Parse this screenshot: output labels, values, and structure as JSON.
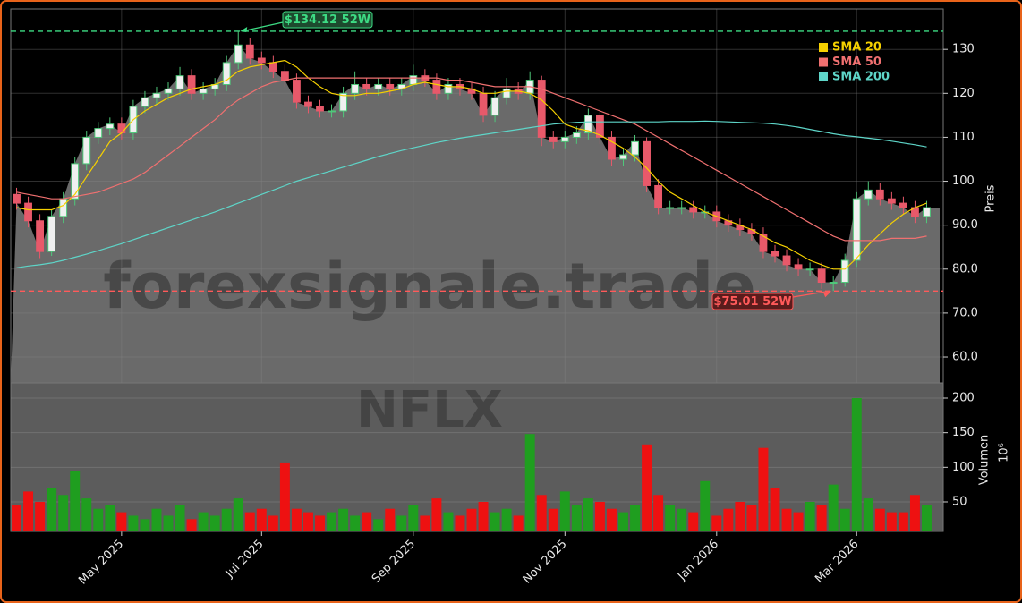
{
  "chart_data": [
    {
      "type": "candlestick",
      "categories": [
        null,
        null,
        null,
        null,
        null,
        null,
        null,
        null,
        null,
        "May 2025",
        null,
        null,
        null,
        null,
        null,
        null,
        null,
        null,
        null,
        null,
        null,
        "Jul 2025",
        null,
        null,
        null,
        null,
        null,
        null,
        null,
        null,
        null,
        null,
        null,
        null,
        "Sep 2025",
        null,
        null,
        null,
        null,
        null,
        null,
        null,
        null,
        null,
        null,
        null,
        null,
        "Nov 2025",
        null,
        null,
        null,
        null,
        null,
        null,
        null,
        null,
        null,
        null,
        null,
        null,
        "Jan 2026",
        null,
        null,
        null,
        null,
        null,
        null,
        null,
        null,
        null,
        null,
        null,
        "Mar 2026",
        null,
        null,
        null,
        null,
        null,
        null
      ],
      "open": [
        97,
        95,
        91,
        84,
        92,
        96,
        104,
        110,
        112,
        113,
        111,
        117,
        119,
        120,
        121,
        124,
        120,
        121,
        122,
        127,
        131,
        128,
        127,
        125,
        123,
        118,
        117,
        116,
        116,
        120,
        122,
        121,
        122,
        121,
        122,
        124,
        123,
        120,
        122,
        121,
        120,
        115,
        119,
        121,
        120,
        123,
        110,
        109,
        110,
        111,
        115,
        110,
        105,
        106,
        109,
        99,
        94,
        94,
        94,
        93,
        93,
        91,
        90,
        89,
        88,
        84,
        83,
        81,
        80,
        80,
        77,
        77,
        82,
        96,
        98,
        96,
        95,
        94,
        92
      ],
      "high": [
        98.5,
        96.5,
        92.5,
        93.5,
        97.5,
        105.5,
        111.5,
        113.5,
        114.5,
        114.5,
        118.5,
        120.5,
        121.5,
        122.5,
        126,
        125.5,
        122.5,
        123.5,
        128.5,
        134.12,
        132.5,
        129.5,
        128.5,
        126.5,
        124.5,
        119.5,
        118.5,
        117.5,
        121.5,
        125,
        123.5,
        123.5,
        123.5,
        123.5,
        126.5,
        125.5,
        124.5,
        123.5,
        123.5,
        122.5,
        121.5,
        120.5,
        123.5,
        122.5,
        125,
        124,
        111.5,
        111.5,
        112.5,
        116.5,
        116.5,
        111.5,
        107.5,
        110.5,
        110,
        100.5,
        95.5,
        95.5,
        95.5,
        94.5,
        94.5,
        92.5,
        91.5,
        90.5,
        89.5,
        85.5,
        84.5,
        82.5,
        81.5,
        81.5,
        78.5,
        83.5,
        97.5,
        100,
        99.5,
        97.5,
        96.5,
        95.5,
        95.5
      ],
      "low": [
        93.5,
        89.5,
        82.5,
        83,
        90.5,
        94.5,
        102.5,
        108.5,
        110.5,
        109.5,
        109.5,
        115.5,
        117.5,
        118.5,
        119.5,
        118.5,
        118.5,
        119.5,
        120.5,
        125.5,
        126.5,
        125.5,
        123.5,
        121.5,
        116.5,
        115.5,
        114.5,
        114.5,
        114.5,
        118.5,
        119.5,
        119.5,
        119.5,
        119.5,
        120.5,
        121.5,
        118.5,
        118.5,
        119.5,
        118.5,
        113.5,
        113.5,
        117.5,
        118.5,
        118.5,
        108,
        107.5,
        107.5,
        108.5,
        109.5,
        108.5,
        103.5,
        103.5,
        104.5,
        97.5,
        92.5,
        92.5,
        92.5,
        91.5,
        91.5,
        89.5,
        88.5,
        87.5,
        86.5,
        82.5,
        81.5,
        79.5,
        78.5,
        78.5,
        75.5,
        75.01,
        76,
        80.5,
        94.5,
        94.5,
        93.5,
        92.5,
        90.5,
        90.5
      ],
      "close": [
        95,
        91,
        84,
        92,
        96,
        104,
        110,
        112,
        113,
        111,
        117,
        119,
        120,
        121,
        124,
        120,
        121,
        122,
        127,
        131,
        128,
        127,
        125,
        123,
        118,
        117,
        116,
        116,
        120,
        122,
        121,
        122,
        121,
        122,
        124,
        123,
        120,
        122,
        121,
        120,
        115,
        119,
        121,
        120,
        123,
        110,
        109,
        110,
        111,
        115,
        110,
        105,
        106,
        109,
        99,
        94,
        94,
        94,
        93,
        93,
        91,
        90,
        89,
        88,
        84,
        83,
        81,
        80,
        80,
        77,
        77,
        82,
        96,
        98,
        96,
        95,
        94,
        92,
        94
      ],
      "up_color": "#4fc87a",
      "down_color": "#e8596a",
      "series": [
        {
          "name": "SMA 20",
          "color": "#f5d000",
          "values": [
            94,
            93.5,
            93.5,
            93.5,
            94.5,
            97,
            101,
            105,
            109,
            111,
            114,
            116,
            117.5,
            119,
            120,
            121,
            121.5,
            122,
            123,
            125,
            126,
            126.5,
            127,
            127.5,
            126,
            123.5,
            121.5,
            120,
            119.5,
            119.5,
            120,
            120,
            120.5,
            121,
            122,
            122.5,
            122,
            121.5,
            121.5,
            121,
            120,
            120,
            120.5,
            120.5,
            120,
            118.5,
            116,
            113,
            112,
            111.5,
            110.5,
            109,
            107.5,
            105.5,
            103,
            100,
            97.5,
            96,
            94.5,
            93,
            92,
            91,
            90,
            89,
            87.5,
            86,
            85,
            83.5,
            82,
            81,
            80,
            80,
            82.5,
            85.5,
            88,
            90.5,
            92.5,
            94,
            95
          ]
        },
        {
          "name": "SMA 50",
          "color": "#f07070",
          "values": [
            97.5,
            97,
            96.5,
            96,
            96,
            96.5,
            97,
            97.5,
            98.5,
            99.5,
            100.5,
            102,
            104,
            106,
            108,
            110,
            112,
            114,
            116.5,
            118.5,
            120,
            121.5,
            122.5,
            123,
            123.5,
            123.5,
            123.5,
            123.5,
            123.5,
            123.5,
            123.5,
            123.5,
            123.5,
            123.5,
            123.5,
            123.5,
            123.5,
            123,
            123,
            122.5,
            122,
            121.5,
            121.5,
            121.5,
            121.5,
            121,
            120,
            119,
            118,
            117,
            116,
            115,
            114,
            113,
            111.5,
            110,
            108.5,
            107,
            105.5,
            104,
            102.5,
            101,
            99.5,
            98,
            96.5,
            95,
            93.5,
            92,
            90.5,
            89,
            87.5,
            86.5,
            86.5,
            86.5,
            86.5,
            87,
            87,
            87,
            87.5
          ]
        },
        {
          "name": "SMA 200",
          "color": "#5ed5c8",
          "values": [
            80.3,
            80.7,
            81,
            81.4,
            82,
            82.7,
            83.4,
            84.2,
            85,
            85.8,
            86.7,
            87.6,
            88.5,
            89.4,
            90.3,
            91.2,
            92.1,
            93,
            94,
            95,
            96,
            97,
            98,
            99,
            100,
            100.8,
            101.6,
            102.4,
            103.2,
            104,
            104.8,
            105.6,
            106.3,
            107,
            107.6,
            108.2,
            108.8,
            109.3,
            109.8,
            110.2,
            110.6,
            111,
            111.4,
            111.8,
            112.2,
            112.6,
            113,
            113.2,
            113.4,
            113.5,
            113.5,
            113.5,
            113.5,
            113.5,
            113.5,
            113.5,
            113.6,
            113.6,
            113.6,
            113.7,
            113.6,
            113.5,
            113.4,
            113.3,
            113.2,
            113,
            112.7,
            112.3,
            111.8,
            111.3,
            110.8,
            110.4,
            110.1,
            109.8,
            109.5,
            109.1,
            108.7,
            108.3,
            107.8
          ]
        }
      ],
      "ylim": [
        54.1,
        139.2
      ],
      "yticks": [
        {
          "value": 60,
          "label": "60.0"
        },
        {
          "value": 70,
          "label": "70.0"
        },
        {
          "value": 80,
          "label": "80.0"
        },
        {
          "value": 90,
          "label": "90.0"
        },
        100,
        110,
        120,
        130
      ],
      "ylabel": "Preis",
      "grid": true,
      "legend": "upper right",
      "high_line": {
        "value": 134.12,
        "label": "$134.12 52W",
        "color": "#3ddc84"
      },
      "low_line": {
        "value": 75.01,
        "label": "$75.01 52W",
        "color": "#ff5a5a"
      },
      "watermark": "forexsignale.trade"
    },
    {
      "type": "bar",
      "values": [
        45,
        65,
        50,
        70,
        60,
        95,
        55,
        40,
        45,
        35,
        30,
        25,
        40,
        30,
        45,
        25,
        35,
        30,
        40,
        55,
        35,
        40,
        30,
        107,
        40,
        35,
        30,
        35,
        40,
        30,
        35,
        25,
        40,
        30,
        45,
        30,
        55,
        35,
        30,
        40,
        50,
        35,
        40,
        30,
        148,
        60,
        40,
        65,
        45,
        55,
        50,
        40,
        35,
        45,
        133,
        60,
        45,
        40,
        35,
        80,
        30,
        40,
        50,
        45,
        128,
        70,
        40,
        35,
        50,
        45,
        75,
        40,
        200,
        55,
        40,
        35,
        35,
        60,
        45
      ],
      "up_color": "#1f9e1f",
      "down_color": "#ee1111",
      "ylim": [
        7.3,
        222
      ],
      "yticks": [
        50,
        100,
        150,
        200
      ],
      "ylabel": "Volumen",
      "offset_label": "10⁶",
      "watermark": "NFLX"
    }
  ]
}
